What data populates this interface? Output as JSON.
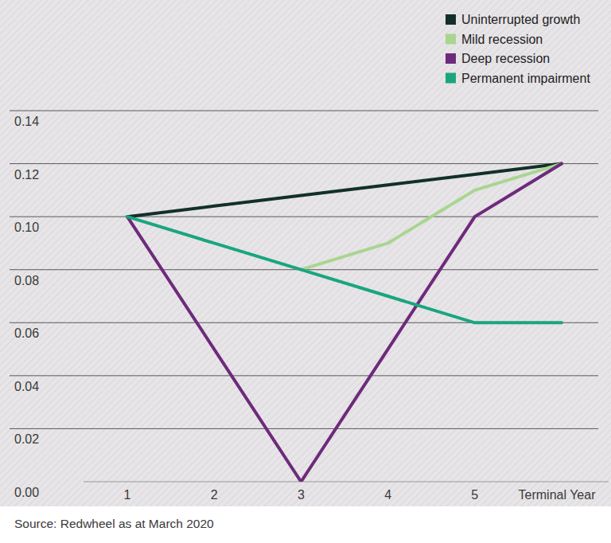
{
  "chart_data": {
    "type": "line",
    "source": "Source: Redwheel as at March 2020",
    "categories": [
      "1",
      "2",
      "3",
      "4",
      "5",
      "Terminal Year"
    ],
    "series": [
      {
        "name": "Uninterrupted growth",
        "color": "#12302a",
        "values": [
          0.1,
          0.104,
          0.108,
          0.112,
          0.116,
          0.12
        ]
      },
      {
        "name": "Mild recession",
        "color": "#a9d590",
        "values": [
          null,
          null,
          0.08,
          0.09,
          0.11,
          0.12
        ]
      },
      {
        "name": "Deep recession",
        "color": "#6e2a7c",
        "values": [
          0.1,
          0.05,
          0.0,
          0.05,
          0.1,
          0.12
        ]
      },
      {
        "name": "Permanent impairment",
        "color": "#1aa580",
        "values": [
          0.1,
          0.09,
          0.08,
          0.07,
          0.06,
          0.06
        ]
      }
    ],
    "ylim": [
      0,
      0.14
    ],
    "yticks": [
      {
        "value": 0,
        "label": "0.00"
      },
      0.02,
      0.04,
      0.06,
      0.08,
      {
        "value": 0.1,
        "label": "0.10"
      },
      0.12,
      0.14
    ],
    "grid": true,
    "legend": "upper right"
  }
}
